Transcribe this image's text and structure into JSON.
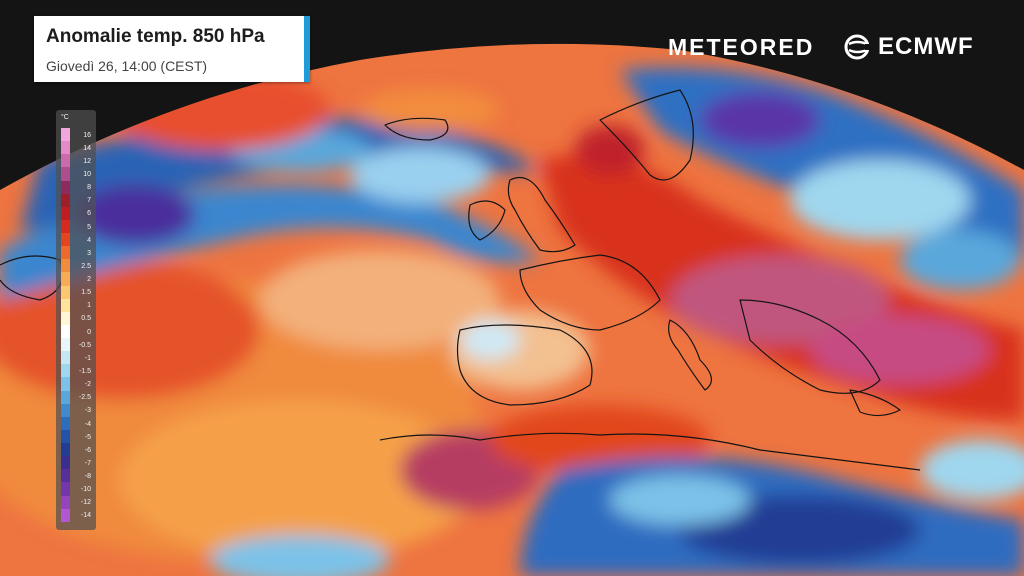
{
  "title": {
    "main": "Anomalie temp. 850 hPa",
    "subtitle": "Giovedì 26, 14:00 (CEST)"
  },
  "brands": {
    "meteored": "METEORED",
    "ecmwf": "ECMWF",
    "ecmwf_icon": "ecmwf-swirl-icon"
  },
  "legend": {
    "unit": "°C",
    "bins": [
      {
        "label": "16",
        "color": "#f0a8dc"
      },
      {
        "label": "14",
        "color": "#e58ac9"
      },
      {
        "label": "12",
        "color": "#cc6aae"
      },
      {
        "label": "10",
        "color": "#b04d8c"
      },
      {
        "label": "8",
        "color": "#8e2a5e"
      },
      {
        "label": "7",
        "color": "#a01e2a"
      },
      {
        "label": "6",
        "color": "#bf1d22"
      },
      {
        "label": "5",
        "color": "#d52b1e"
      },
      {
        "label": "4",
        "color": "#e3461f"
      },
      {
        "label": "3",
        "color": "#ec6a2a"
      },
      {
        "label": "2.5",
        "color": "#f28c3c"
      },
      {
        "label": "2",
        "color": "#f7ab55"
      },
      {
        "label": "1.5",
        "color": "#fbc872"
      },
      {
        "label": "1",
        "color": "#fde39c"
      },
      {
        "label": "0.5",
        "color": "#fff6d8"
      },
      {
        "label": "0",
        "color": "#ffffff"
      },
      {
        "label": "-0.5",
        "color": "#e6f6fb"
      },
      {
        "label": "-1",
        "color": "#c4e9f5"
      },
      {
        "label": "-1.5",
        "color": "#9fd7ef"
      },
      {
        "label": "-2",
        "color": "#7cc2e8"
      },
      {
        "label": "-2.5",
        "color": "#5aa7dc"
      },
      {
        "label": "-3",
        "color": "#3e8acd"
      },
      {
        "label": "-4",
        "color": "#2c6dbd"
      },
      {
        "label": "-5",
        "color": "#2253a8"
      },
      {
        "label": "-6",
        "color": "#243d94"
      },
      {
        "label": "-7",
        "color": "#3a2f91"
      },
      {
        "label": "-8",
        "color": "#55309a"
      },
      {
        "label": "-10",
        "color": "#7436ac"
      },
      {
        "label": "-12",
        "color": "#9544c0"
      },
      {
        "label": "-14",
        "color": "#b257d1"
      }
    ]
  },
  "map": {
    "background": "#141414",
    "ocean_base": "#e86a3e",
    "land_outline": "#141414",
    "cold_color": "#2a64b8",
    "cold_deep": "#3a3aa0",
    "warm_color": "#d93a24",
    "hot_color": "#c04a82"
  }
}
